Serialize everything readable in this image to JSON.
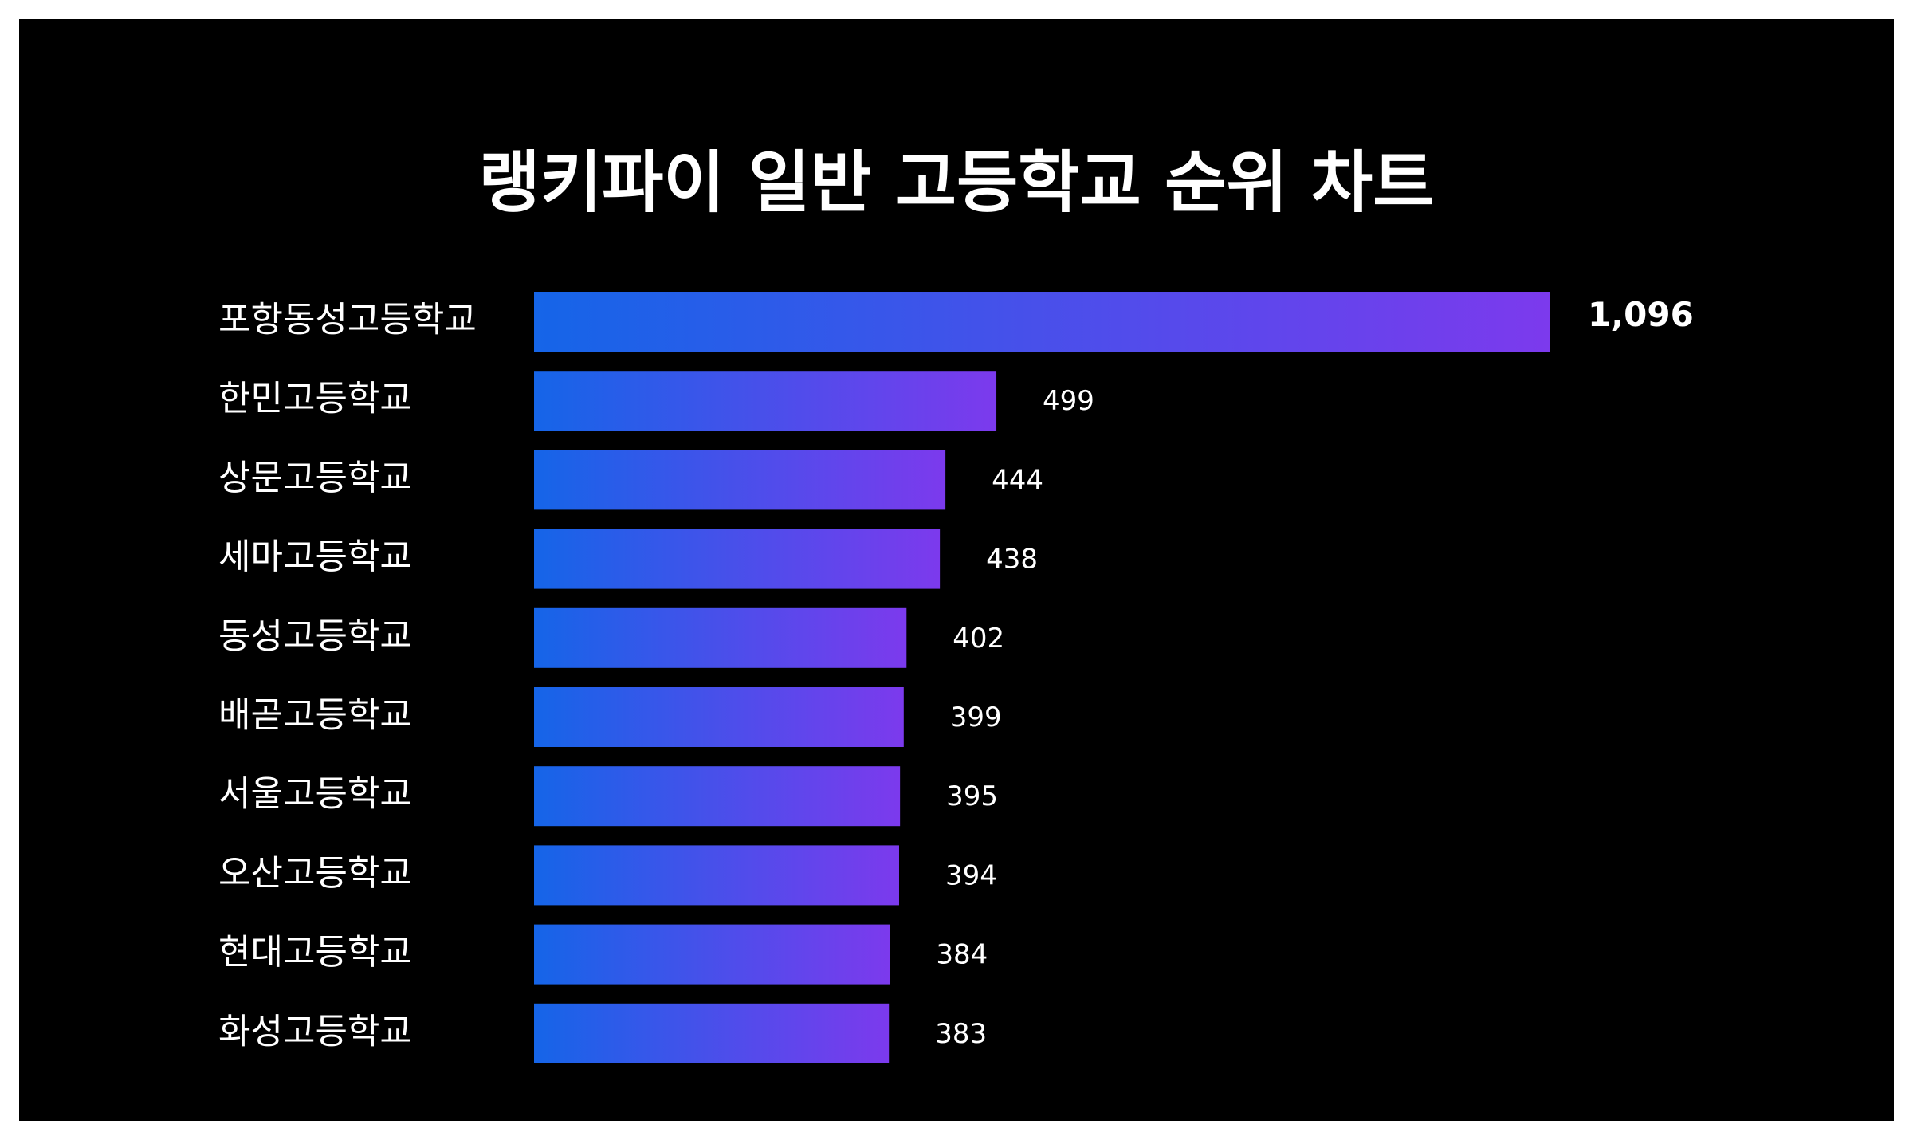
{
  "chart_data": {
    "type": "bar",
    "orientation": "horizontal",
    "title": "랭키파이 일반 고등학교 순위 차트",
    "categories": [
      "포항동성고등학교",
      "한민고등학교",
      "상문고등학교",
      "세마고등학교",
      "동성고등학교",
      "배곧고등학교",
      "서울고등학교",
      "오산고등학교",
      "현대고등학교",
      "화성고등학교"
    ],
    "values": [
      1096,
      499,
      444,
      438,
      402,
      399,
      395,
      394,
      384,
      383
    ],
    "value_labels": [
      "1,096",
      "499",
      "444",
      "438",
      "402",
      "399",
      "395",
      "394",
      "384",
      "383"
    ],
    "xlim": [
      0,
      1096
    ],
    "grid": false,
    "legend": "none"
  },
  "colors": {
    "background": "#000000",
    "bar_gradient_start": "#1565e8",
    "bar_gradient_end": "#7c3aed",
    "text": "#ffffff"
  }
}
